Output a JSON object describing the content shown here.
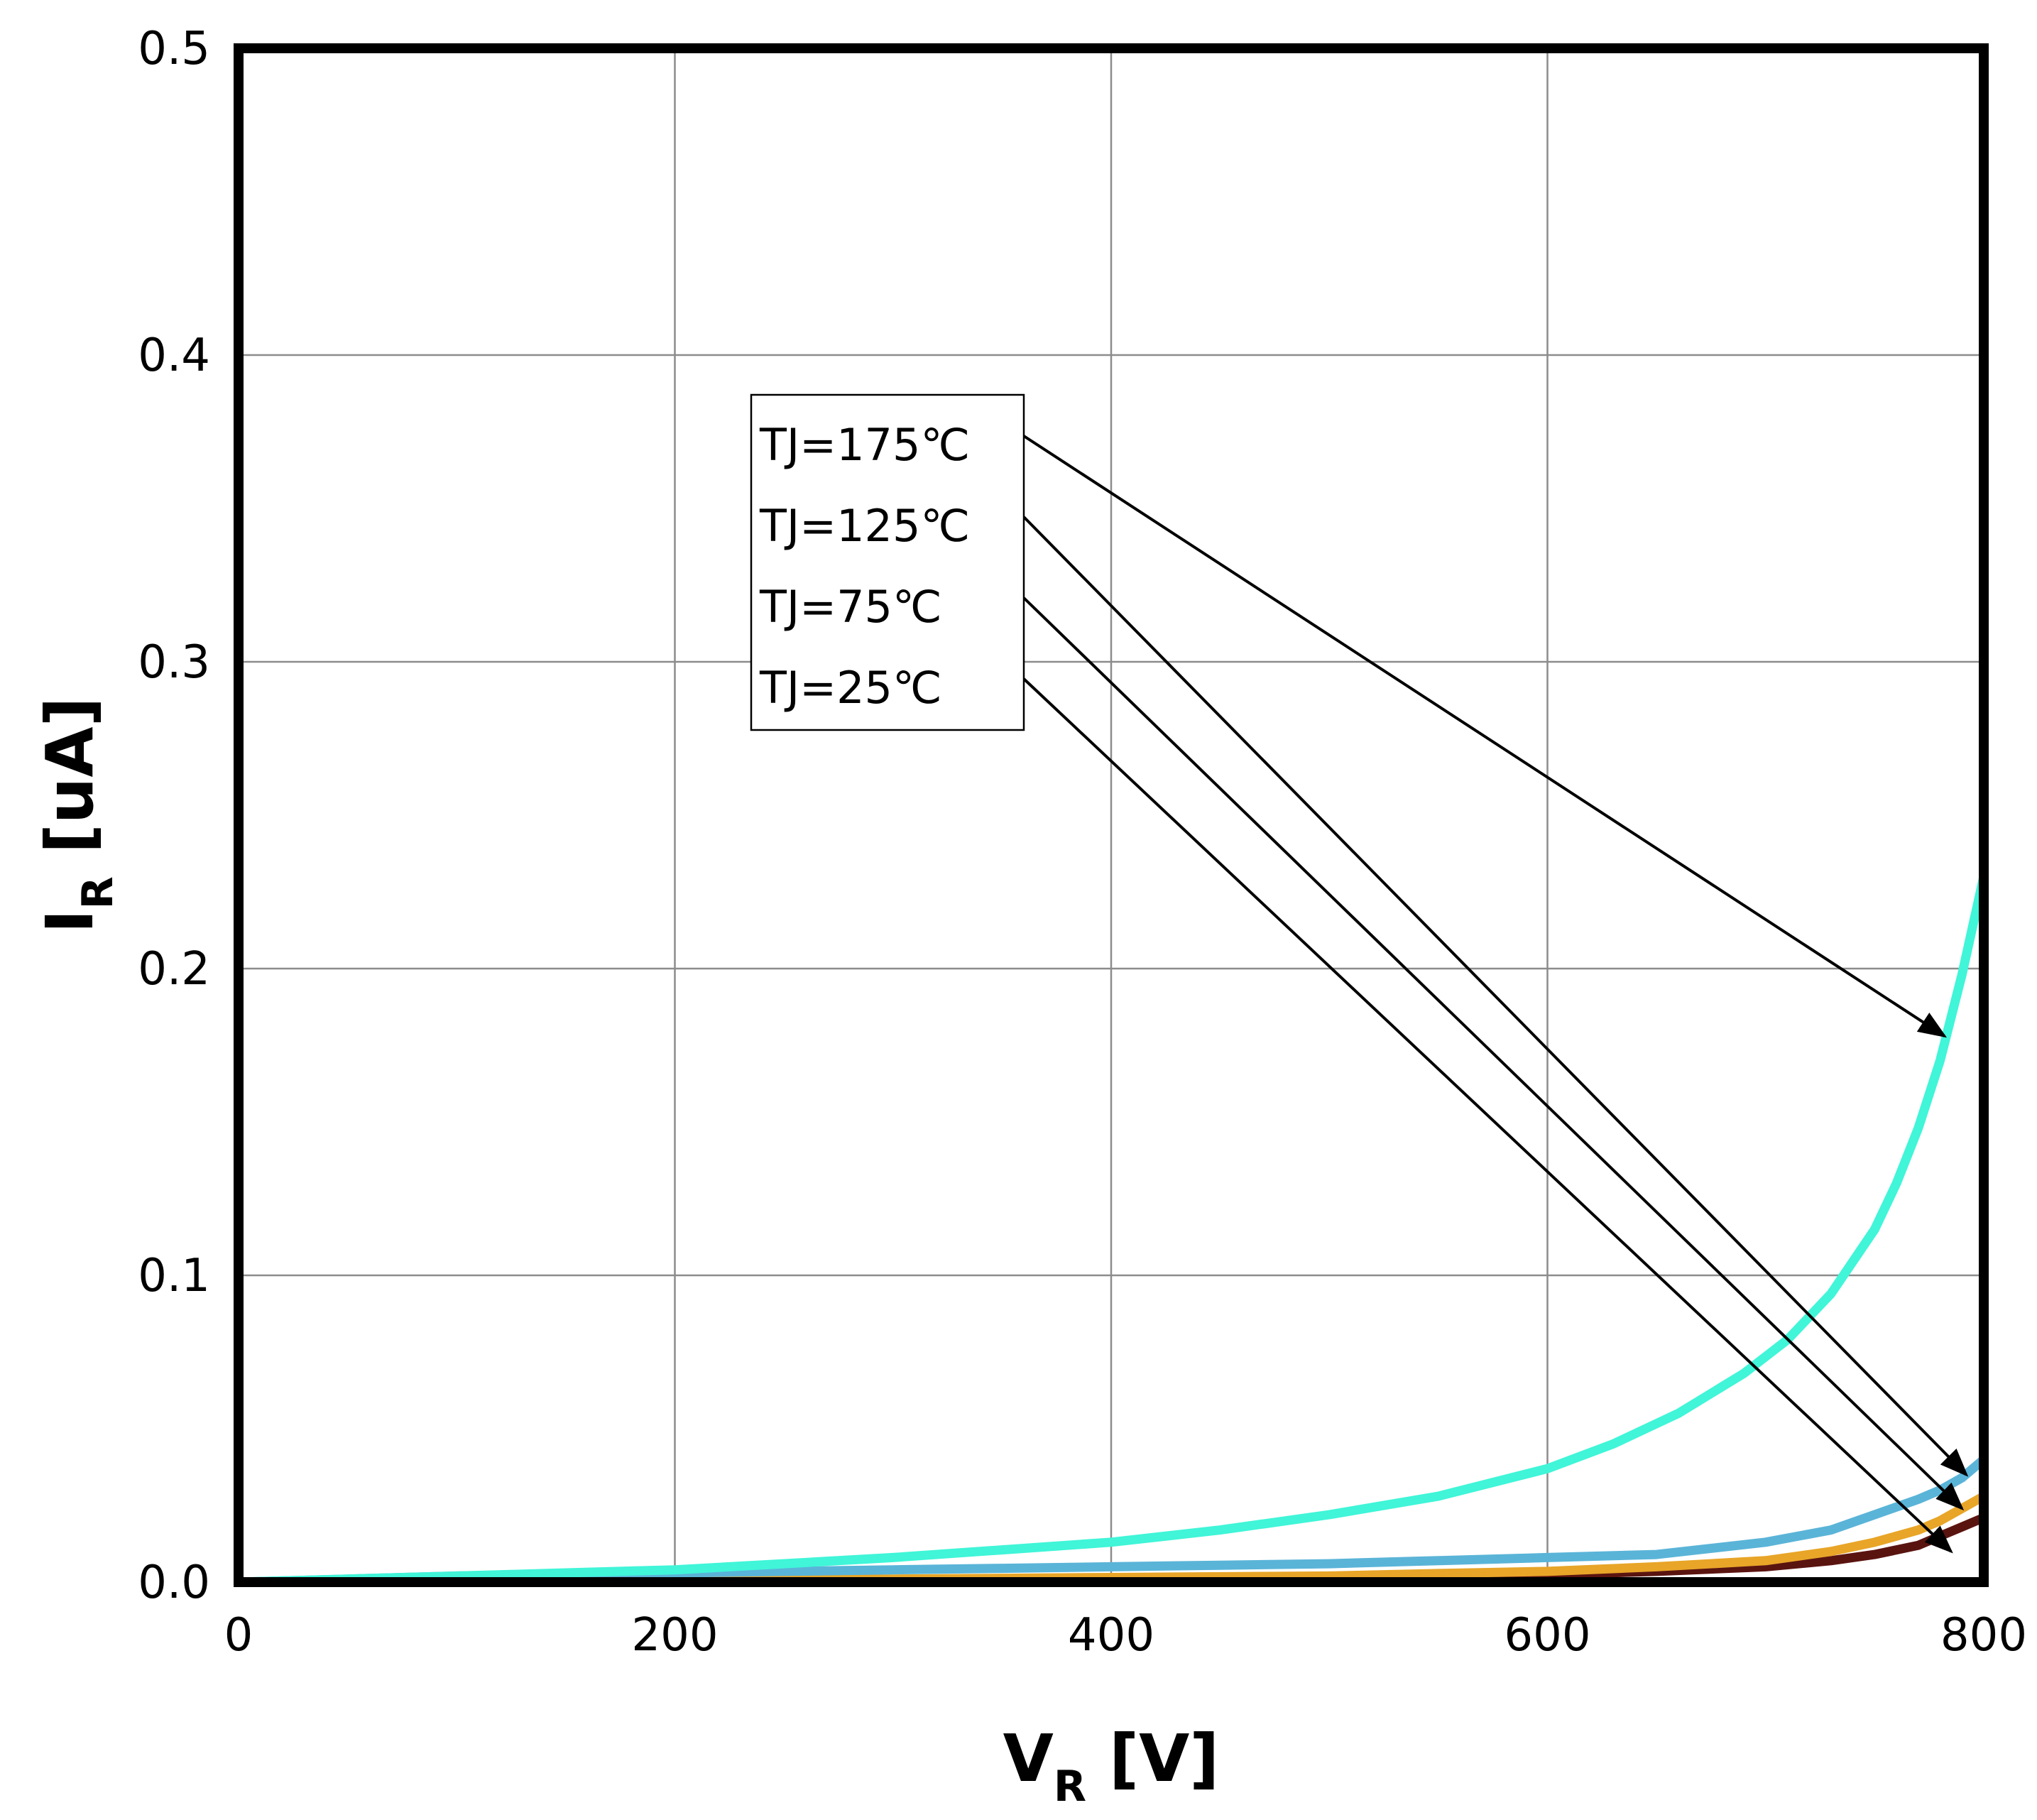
{
  "chart_data": {
    "type": "line",
    "title": "",
    "xlabel": {
      "main": "V",
      "sub": "R",
      "unit": " [V]"
    },
    "ylabel": {
      "main": "I",
      "sub": "R",
      "unit": " [uA]"
    },
    "xlim": [
      0,
      800
    ],
    "ylim": [
      0,
      0.5
    ],
    "grid": true,
    "x_ticks": [
      0,
      200,
      400,
      600,
      800
    ],
    "x_tick_labels": [
      "0",
      "200",
      "400",
      "600",
      "800"
    ],
    "y_ticks": [
      0,
      0.1,
      0.2,
      0.3,
      0.4,
      0.5
    ],
    "y_tick_labels": [
      "0.0",
      "0.1",
      "0.2",
      "0.3",
      "0.4",
      "0.5"
    ],
    "legend_placement": "upper-center",
    "series": [
      {
        "name": "TJ=175℃",
        "color": "#40f5d8",
        "x": [
          0,
          50,
          100,
          150,
          200,
          250,
          300,
          350,
          400,
          450,
          500,
          550,
          600,
          630,
          660,
          690,
          710,
          730,
          750,
          760,
          770,
          780,
          790,
          800
        ],
        "values": [
          0.0,
          0.001,
          0.002,
          0.003,
          0.004,
          0.006,
          0.008,
          0.0105,
          0.013,
          0.017,
          0.022,
          0.028,
          0.037,
          0.045,
          0.055,
          0.068,
          0.079,
          0.094,
          0.115,
          0.13,
          0.148,
          0.17,
          0.198,
          0.23
        ]
      },
      {
        "name": "TJ=125℃",
        "color": "#5ab4d8",
        "x": [
          0,
          50,
          100,
          150,
          200,
          250,
          300,
          350,
          400,
          450,
          500,
          550,
          600,
          650,
          700,
          730,
          750,
          770,
          780,
          790,
          800
        ],
        "values": [
          0.0,
          0.001,
          0.002,
          0.0025,
          0.003,
          0.0035,
          0.004,
          0.0045,
          0.005,
          0.0055,
          0.006,
          0.007,
          0.008,
          0.009,
          0.013,
          0.017,
          0.022,
          0.027,
          0.03,
          0.034,
          0.04
        ]
      },
      {
        "name": "TJ=75℃",
        "color": "#e8a528",
        "x": [
          0,
          100,
          200,
          300,
          400,
          500,
          550,
          600,
          650,
          700,
          730,
          750,
          770,
          780,
          790,
          800
        ],
        "values": [
          0.0,
          0.0003,
          0.0006,
          0.001,
          0.0015,
          0.002,
          0.0028,
          0.0035,
          0.005,
          0.007,
          0.01,
          0.013,
          0.017,
          0.02,
          0.024,
          0.028
        ]
      },
      {
        "name": "TJ=25℃",
        "color": "#5a1410",
        "x": [
          0,
          100,
          200,
          300,
          400,
          500,
          550,
          600,
          650,
          700,
          730,
          750,
          770,
          780,
          790,
          800
        ],
        "values": [
          0.0,
          0.0002,
          0.0004,
          0.0006,
          0.0008,
          0.0012,
          0.0018,
          0.0025,
          0.0035,
          0.005,
          0.007,
          0.009,
          0.012,
          0.015,
          0.018,
          0.021
        ]
      }
    ],
    "legend": [
      "TJ=175℃",
      "TJ=125℃",
      "TJ=75℃",
      "TJ=25℃"
    ],
    "arrow_targets": [
      {
        "label": "TJ=175℃",
        "x": 782,
        "y": 0.178
      },
      {
        "label": "TJ=125℃",
        "x": 792,
        "y": 0.035
      },
      {
        "label": "TJ=75℃",
        "x": 790,
        "y": 0.024
      },
      {
        "label": "TJ=25℃",
        "x": 785,
        "y": 0.01
      }
    ]
  }
}
